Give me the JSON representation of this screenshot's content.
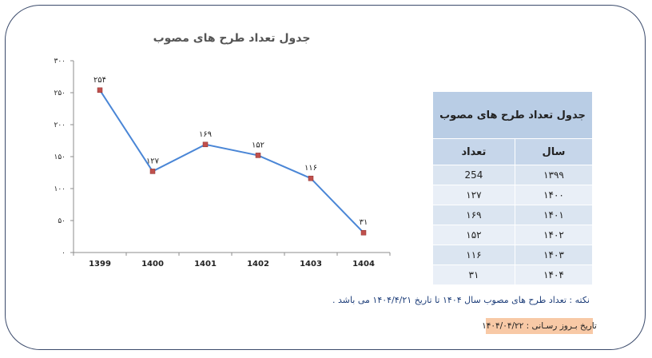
{
  "chart_data": {
    "type": "line",
    "title": "جدول تعداد طرح های مصوب",
    "categories": [
      "1399",
      "1400",
      "1401",
      "1402",
      "1403",
      "1404"
    ],
    "values": [
      254,
      127,
      169,
      152,
      116,
      31
    ],
    "data_labels": [
      "۲۵۴",
      "۱۲۷",
      "۱۶۹",
      "۱۵۲",
      "۱۱۶",
      "۳۱"
    ],
    "ylim": [
      0,
      300
    ],
    "yticks": [
      0,
      50,
      100,
      150,
      200,
      250,
      300
    ],
    "ytick_labels": [
      "۰",
      "۵۰",
      "۱۰۰",
      "۱۵۰",
      "۲۰۰",
      "۲۵۰",
      "۳۰۰"
    ],
    "grid": false,
    "line_color": "#4a86d6",
    "marker_color": "#c0504d"
  },
  "table": {
    "title": "جدول تعداد طرح های مصوب",
    "col_year": "سال",
    "col_count": "تعداد",
    "rows": [
      {
        "year": "۱۳۹۹",
        "count": "254"
      },
      {
        "year": "۱۴۰۰",
        "count": "۱۲۷"
      },
      {
        "year": "۱۴۰۱",
        "count": "۱۶۹"
      },
      {
        "year": "۱۴۰۲",
        "count": "۱۵۲"
      },
      {
        "year": "۱۴۰۳",
        "count": "۱۱۶"
      },
      {
        "year": "۱۴۰۴",
        "count": "۳۱"
      }
    ]
  },
  "note": "نکته : تعداد طرح های مصوب سال ۱۴۰۴ تا تاریخ ۱۴۰۴/۴/۲۱ می باشد .",
  "update_date": "تاریخ بـروز رسـانی : ۱۴۰۴/۰۴/۲۲"
}
